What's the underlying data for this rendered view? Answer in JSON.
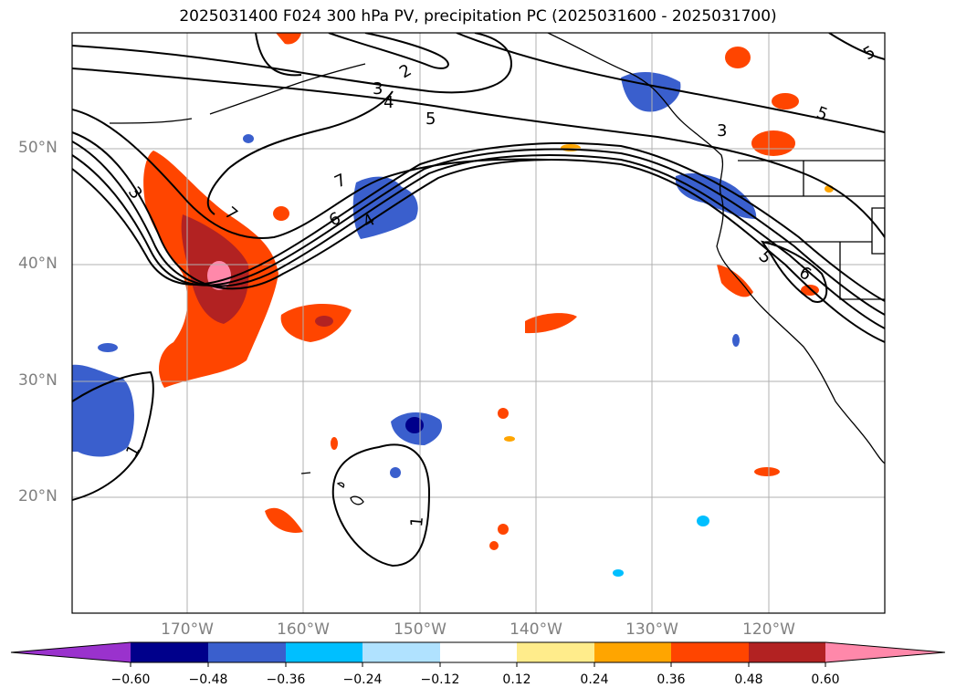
{
  "title": "2025031400 F024 300 hPa PV, precipitation PC (2025031600 - 2025031700)",
  "latitude_labels": [
    "50°N",
    "40°N",
    "30°N",
    "20°N"
  ],
  "longitude_labels": [
    "170°W",
    "160°W",
    "150°W",
    "140°W",
    "130°W",
    "120°W"
  ],
  "pv_contour_labels": [
    "1",
    "1",
    "2",
    "3",
    "3",
    "3",
    "4",
    "4",
    "5",
    "5",
    "5",
    "5",
    "6",
    "6",
    "7",
    "7"
  ],
  "colorbar": {
    "tick_labels": [
      "−0.60",
      "−0.48",
      "−0.36",
      "−0.24",
      "−0.12",
      "0.12",
      "0.24",
      "0.36",
      "0.48",
      "0.60"
    ],
    "colors": [
      "#9a32cd",
      "#00008b",
      "#3a5fcd",
      "#00bfff",
      "#b0e2ff",
      "#ffffff",
      "#ffec8b",
      "#ffa500",
      "#ff4500",
      "#b22222",
      "#ff88aa"
    ]
  }
}
